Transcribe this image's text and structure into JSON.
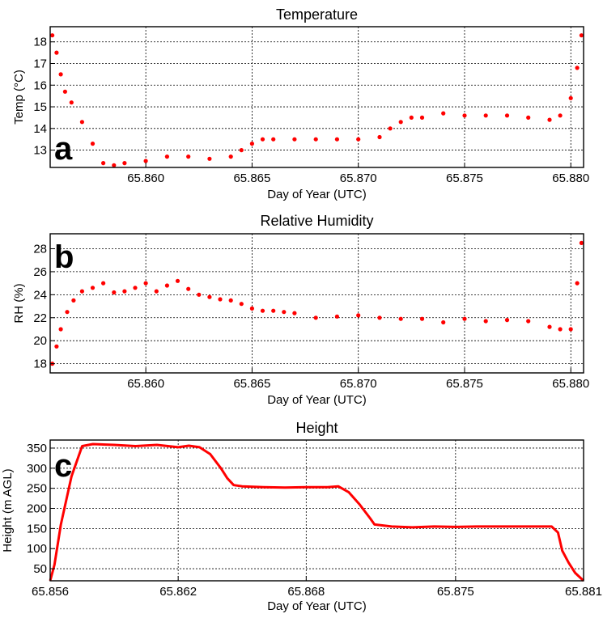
{
  "chart_data": [
    {
      "type": "scatter",
      "panel_letter": "a",
      "title": "Temperature",
      "xlabel": "Day of Year (UTC)",
      "ylabel": "Temp (°C)",
      "xlim": [
        65.8555,
        65.8806
      ],
      "ylim": [
        12.2,
        18.7
      ],
      "x_ticks": [
        65.86,
        65.865,
        65.87,
        65.875,
        65.88
      ],
      "x_tick_labels": [
        "65.860",
        "65.865",
        "65.870",
        "65.875",
        "65.880"
      ],
      "y_ticks": [
        13,
        14,
        15,
        16,
        17,
        18
      ],
      "y_tick_labels": [
        "13",
        "14",
        "15",
        "16",
        "17",
        "18"
      ],
      "grid": true,
      "series_color": "#ff0000",
      "series": [
        {
          "x": [
            65.8556,
            65.8558,
            65.856,
            65.8562,
            65.8565,
            65.857,
            65.8575,
            65.858,
            65.8585,
            65.859,
            65.86,
            65.861,
            65.862,
            65.863,
            65.864,
            65.8645,
            65.865,
            65.8655,
            65.866,
            65.867,
            65.868,
            65.869,
            65.87,
            65.871,
            65.8715,
            65.872,
            65.8725,
            65.873,
            65.874,
            65.875,
            65.876,
            65.877,
            65.878,
            65.879,
            65.8795,
            65.88,
            65.8803,
            65.8805
          ],
          "y": [
            18.3,
            17.5,
            16.5,
            15.7,
            15.2,
            14.3,
            13.3,
            12.4,
            12.3,
            12.4,
            12.5,
            12.7,
            12.7,
            12.6,
            12.7,
            13.0,
            13.3,
            13.5,
            13.5,
            13.5,
            13.5,
            13.5,
            13.5,
            13.6,
            14.0,
            14.3,
            14.5,
            14.5,
            14.7,
            14.6,
            14.6,
            14.6,
            14.5,
            14.4,
            14.6,
            15.4,
            16.8,
            18.3
          ]
        }
      ]
    },
    {
      "type": "scatter",
      "panel_letter": "b",
      "title": "Relative Humidity",
      "xlabel": "Day of Year (UTC)",
      "ylabel": "RH (%)",
      "xlim": [
        65.8555,
        65.8806
      ],
      "ylim": [
        17.2,
        29.3
      ],
      "x_ticks": [
        65.86,
        65.865,
        65.87,
        65.875,
        65.88
      ],
      "x_tick_labels": [
        "65.860",
        "65.865",
        "65.870",
        "65.875",
        "65.880"
      ],
      "y_ticks": [
        18,
        20,
        22,
        24,
        26,
        28
      ],
      "y_tick_labels": [
        "18",
        "20",
        "22",
        "24",
        "26",
        "28"
      ],
      "grid": true,
      "series_color": "#ff0000",
      "series": [
        {
          "x": [
            65.8556,
            65.8558,
            65.856,
            65.8563,
            65.8566,
            65.857,
            65.8575,
            65.858,
            65.8585,
            65.859,
            65.8595,
            65.86,
            65.8605,
            65.861,
            65.8615,
            65.862,
            65.8625,
            65.863,
            65.8635,
            65.864,
            65.8645,
            65.865,
            65.8655,
            65.866,
            65.8665,
            65.867,
            65.868,
            65.869,
            65.87,
            65.871,
            65.872,
            65.873,
            65.874,
            65.875,
            65.876,
            65.877,
            65.878,
            65.879,
            65.8795,
            65.88,
            65.8803,
            65.8805
          ],
          "y": [
            18.0,
            19.5,
            21.0,
            22.5,
            23.5,
            24.3,
            24.6,
            25.0,
            24.2,
            24.3,
            24.6,
            25.0,
            24.3,
            24.8,
            25.2,
            24.5,
            24.0,
            23.8,
            23.6,
            23.5,
            23.2,
            22.8,
            22.6,
            22.6,
            22.5,
            22.4,
            22.0,
            22.1,
            22.2,
            22.0,
            21.9,
            21.9,
            21.6,
            21.9,
            21.7,
            21.8,
            21.7,
            21.2,
            21.0,
            21.0,
            25.0,
            28.5
          ]
        }
      ]
    },
    {
      "type": "line",
      "panel_letter": "c",
      "title": "Height",
      "xlabel": "Day of Year (UTC)",
      "ylabel": "Height (m AGL)",
      "xlim": [
        65.856,
        65.881
      ],
      "ylim": [
        20,
        370
      ],
      "x_ticks": [
        65.856,
        65.862,
        65.868,
        65.875,
        65.881
      ],
      "x_tick_labels": [
        "65.856",
        "65.862",
        "65.868",
        "65.875",
        "65.881"
      ],
      "y_ticks": [
        50,
        100,
        150,
        200,
        250,
        300,
        350
      ],
      "y_tick_labels": [
        "50",
        "100",
        "150",
        "200",
        "250",
        "300",
        "350"
      ],
      "grid": true,
      "series_color": "#ff0000",
      "series": [
        {
          "x": [
            65.856,
            65.8562,
            65.8565,
            65.857,
            65.8575,
            65.858,
            65.859,
            65.86,
            65.861,
            65.862,
            65.8625,
            65.863,
            65.8635,
            65.864,
            65.8643,
            65.8646,
            65.865,
            65.866,
            65.867,
            65.868,
            65.869,
            65.8695,
            65.87,
            65.8705,
            65.871,
            65.8712,
            65.872,
            65.873,
            65.874,
            65.875,
            65.876,
            65.877,
            65.878,
            65.879,
            65.8795,
            65.8798,
            65.88,
            65.8803,
            65.8806,
            65.881
          ],
          "y": [
            20,
            60,
            160,
            280,
            355,
            360,
            358,
            355,
            358,
            352,
            356,
            352,
            335,
            300,
            275,
            258,
            255,
            253,
            252,
            253,
            253,
            255,
            240,
            210,
            175,
            160,
            155,
            153,
            155,
            154,
            155,
            155,
            155,
            155,
            155,
            140,
            95,
            65,
            40,
            20
          ]
        }
      ]
    }
  ]
}
